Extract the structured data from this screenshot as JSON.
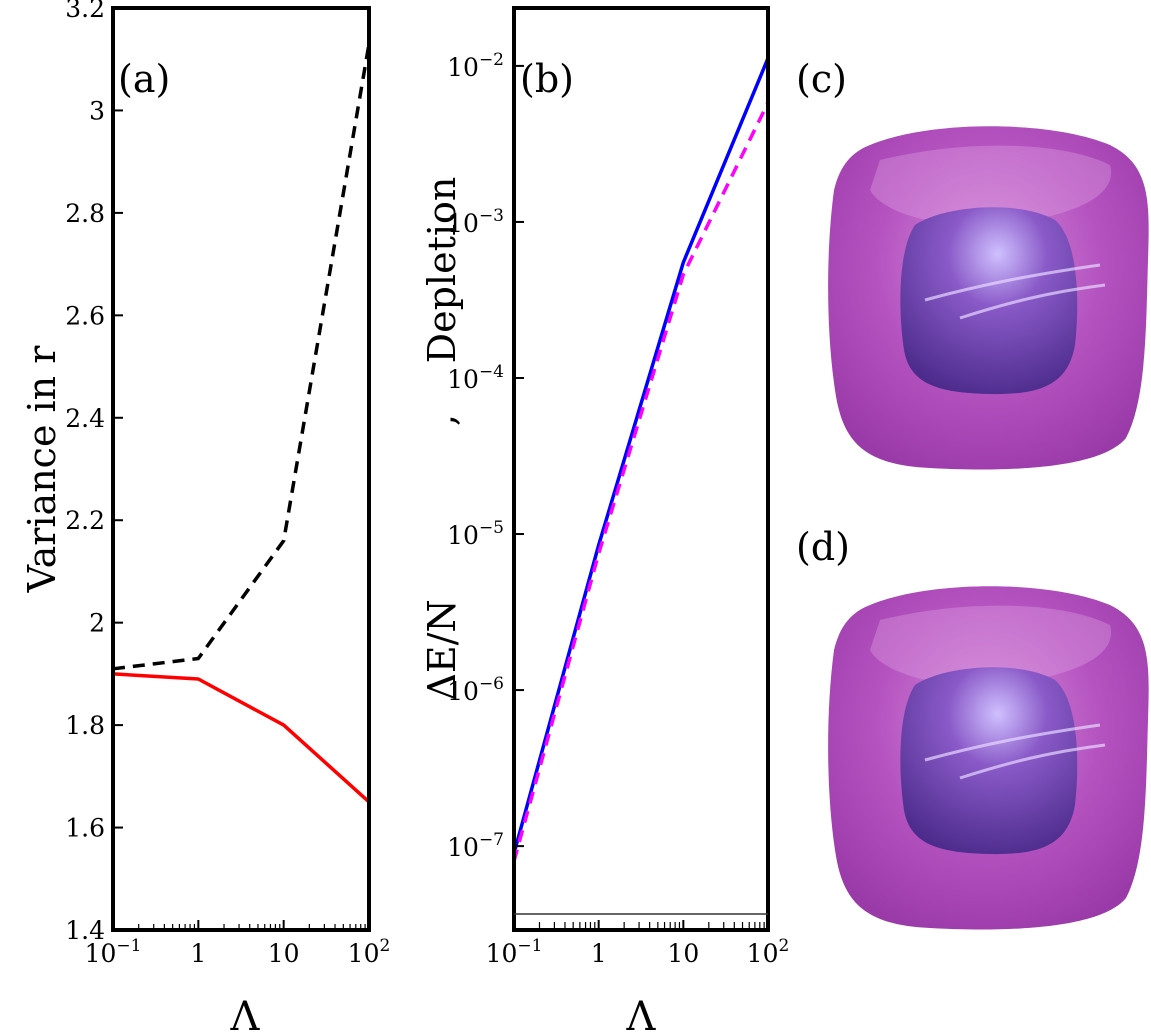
{
  "colors": {
    "solid_a": "#ff0000",
    "dashed_a": "#000000",
    "solid_b": "#0000ff",
    "dashed_b": "#ff00ff",
    "blob_outer": "#b04cc0",
    "blob_inner": "#6a3aa6"
  },
  "chart_data": [
    {
      "panel": "a",
      "type": "line",
      "panel_label": "(a)",
      "xlabel": "Λ",
      "ylabel": "Variance in r",
      "x_scale": "log",
      "xlim": [
        0.1,
        100
      ],
      "ylim": [
        1.4,
        3.2
      ],
      "x_ticks": [
        {
          "value": 0.1,
          "base": "10",
          "exp": "−1"
        },
        {
          "value": 1,
          "base": "1",
          "exp": ""
        },
        {
          "value": 10,
          "base": "10",
          "exp": ""
        },
        {
          "value": 100,
          "base": "10",
          "exp": "2"
        }
      ],
      "y_ticks": [
        {
          "value": 1.4,
          "label": "1.4"
        },
        {
          "value": 1.6,
          "label": "1.6"
        },
        {
          "value": 1.8,
          "label": "1.8"
        },
        {
          "value": 2.0,
          "label": "2"
        },
        {
          "value": 2.2,
          "label": "2.2"
        },
        {
          "value": 2.4,
          "label": "2.4"
        },
        {
          "value": 2.6,
          "label": "2.6"
        },
        {
          "value": 2.8,
          "label": "2.8"
        },
        {
          "value": 3.0,
          "label": "3"
        },
        {
          "value": 3.2,
          "label": "3.2"
        }
      ],
      "series": [
        {
          "style": "dashed",
          "color": "#000000",
          "x": [
            0.1,
            1,
            10,
            100
          ],
          "y": [
            1.91,
            1.93,
            2.16,
            3.13
          ]
        },
        {
          "style": "solid",
          "color": "#ff0000",
          "x": [
            0.1,
            1,
            10,
            100
          ],
          "y": [
            1.9,
            1.89,
            1.8,
            1.65
          ]
        }
      ]
    },
    {
      "panel": "b",
      "type": "line",
      "panel_label": "(b)",
      "xlabel": "Λ",
      "ylabel_parts": [
        "ΔE/N",
        ",",
        "Depletion"
      ],
      "x_scale": "log",
      "y_scale": "log",
      "xlim": [
        0.1,
        100
      ],
      "ylim": [
        2.9e-08,
        0.0235
      ],
      "x_ticks": [
        {
          "value": 0.1,
          "base": "10",
          "exp": "−1"
        },
        {
          "value": 1,
          "base": "1",
          "exp": ""
        },
        {
          "value": 10,
          "base": "10",
          "exp": ""
        },
        {
          "value": 100,
          "base": "10",
          "exp": "2"
        }
      ],
      "y_ticks": [
        {
          "value": 1e-07,
          "base": "10",
          "exp": "−7"
        },
        {
          "value": 1e-06,
          "base": "10",
          "exp": "−6"
        },
        {
          "value": 1e-05,
          "base": "10",
          "exp": "−5"
        },
        {
          "value": 0.0001,
          "base": "10",
          "exp": "−4"
        },
        {
          "value": 0.001,
          "base": "10",
          "exp": "−3"
        },
        {
          "value": 0.01,
          "base": "10",
          "exp": "−2"
        }
      ],
      "series": [
        {
          "style": "solid",
          "color": "#0000ff",
          "x": [
            0.1,
            1,
            10,
            100
          ],
          "y": [
            9e-08,
            8.5e-06,
            0.00055,
            0.0112
          ]
        },
        {
          "style": "dashed",
          "color": "#ff00ff",
          "x": [
            0.1,
            1,
            10,
            100
          ],
          "y": [
            8e-08,
            7.5e-06,
            0.00046,
            0.0058
          ]
        }
      ]
    }
  ],
  "images": [
    {
      "panel_label": "(c)"
    },
    {
      "panel_label": "(d)"
    }
  ]
}
